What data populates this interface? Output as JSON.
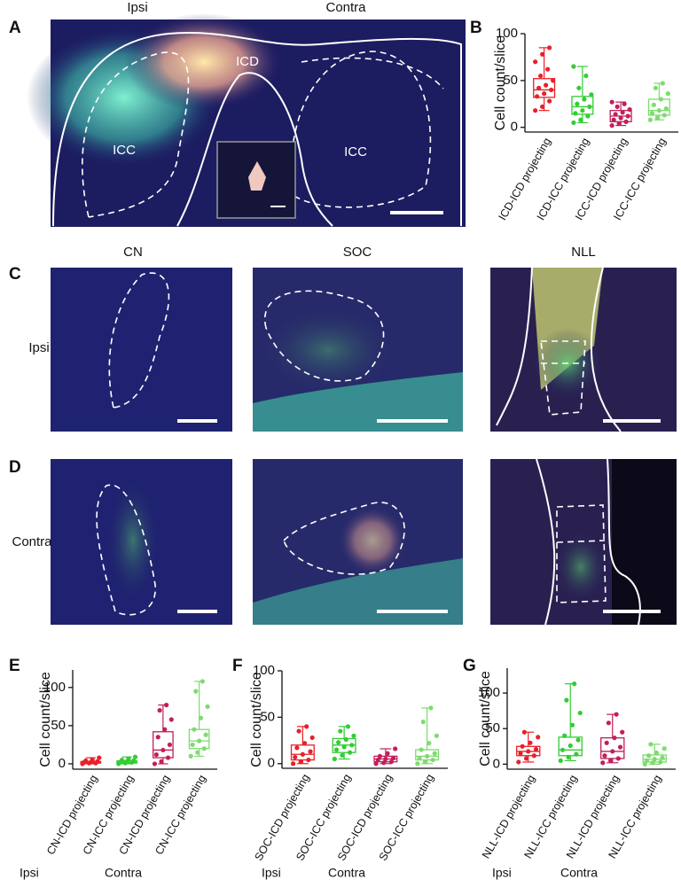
{
  "figure": {
    "panels": [
      "A",
      "B",
      "C",
      "D",
      "E",
      "F",
      "G"
    ],
    "panel_a": {
      "top_labels": [
        "Ipsi",
        "Contra"
      ],
      "region_labels": [
        "ICD",
        "ICC",
        "ICC"
      ]
    },
    "columns": [
      "CN",
      "SOC",
      "NLL"
    ],
    "rows": [
      "Ipsi",
      "Contra"
    ]
  },
  "chart_data": [
    {
      "type": "box",
      "ylabel": "Cell count/slice",
      "ylim": [
        -5,
        100
      ],
      "yticks": [
        0,
        50,
        100
      ],
      "categories": [
        "ICD-ICD projecting",
        "ICD-ICC projecting",
        "ICC-ICD projecting",
        "ICC-ICC projecting"
      ],
      "boxes": [
        {
          "color": "#e8202a",
          "min": 18,
          "q1": 32,
          "median": 40,
          "q3": 52,
          "max": 85,
          "points": [
            18,
            22,
            28,
            33,
            36,
            40,
            42,
            45,
            50,
            55,
            62,
            70,
            78,
            85
          ]
        },
        {
          "color": "#33cc33",
          "min": 5,
          "q1": 14,
          "median": 22,
          "q3": 33,
          "max": 65,
          "points": [
            5,
            8,
            12,
            15,
            18,
            22,
            25,
            30,
            35,
            42,
            55,
            65
          ]
        },
        {
          "color": "#c21f5b",
          "min": 2,
          "q1": 6,
          "median": 12,
          "q3": 18,
          "max": 27,
          "points": [
            2,
            4,
            6,
            8,
            10,
            12,
            14,
            16,
            19,
            22,
            25,
            27
          ]
        },
        {
          "color": "#7ddc6e",
          "min": 8,
          "q1": 13,
          "median": 18,
          "q3": 30,
          "max": 47,
          "points": [
            8,
            10,
            13,
            15,
            18,
            20,
            24,
            30,
            36,
            42,
            47
          ]
        }
      ]
    },
    {
      "type": "box",
      "ylabel": "Cell count/slice",
      "ylim": [
        -7,
        123
      ],
      "yticks": [
        0,
        50,
        100
      ],
      "group_labels": [
        "Ipsi",
        "Contra"
      ],
      "categories": [
        "CN-ICD projecting",
        "CN-ICC projecting",
        "CN-ICD projecting",
        "CN-ICC projecting"
      ],
      "boxes": [
        {
          "color": "#e8202a",
          "min": 0,
          "q1": 1,
          "median": 2,
          "q3": 3,
          "max": 8,
          "points": [
            0,
            1,
            1,
            2,
            2,
            3,
            4,
            5,
            8
          ]
        },
        {
          "color": "#33cc33",
          "min": 0,
          "q1": 1,
          "median": 2,
          "q3": 4,
          "max": 9,
          "points": [
            0,
            1,
            2,
            2,
            3,
            4,
            5,
            7,
            9
          ]
        },
        {
          "color": "#c21f5b",
          "min": 0,
          "q1": 8,
          "median": 18,
          "q3": 42,
          "max": 77,
          "points": [
            0,
            3,
            8,
            12,
            18,
            25,
            35,
            45,
            58,
            70,
            77
          ]
        },
        {
          "color": "#7ddc6e",
          "min": 10,
          "q1": 20,
          "median": 30,
          "q3": 45,
          "max": 108,
          "points": [
            10,
            15,
            20,
            25,
            30,
            38,
            45,
            60,
            75,
            95,
            108
          ]
        }
      ]
    },
    {
      "type": "box",
      "ylabel": "Cell count/slice",
      "ylim": [
        -5,
        100
      ],
      "yticks": [
        0,
        50,
        100
      ],
      "group_labels": [
        "Ipsi",
        "Contra"
      ],
      "categories": [
        "SOC-ICD projecting",
        "SOC-ICC projecting",
        "SOC-ICD projecting",
        "SOC-ICC projecting"
      ],
      "boxes": [
        {
          "color": "#e8202a",
          "min": 0,
          "q1": 4,
          "median": 10,
          "q3": 20,
          "max": 40,
          "points": [
            0,
            2,
            4,
            7,
            10,
            13,
            17,
            22,
            28,
            35,
            40
          ]
        },
        {
          "color": "#33cc33",
          "min": 5,
          "q1": 12,
          "median": 20,
          "q3": 27,
          "max": 40,
          "points": [
            5,
            9,
            12,
            15,
            18,
            20,
            23,
            26,
            30,
            35,
            40
          ]
        },
        {
          "color": "#c21f5b",
          "min": 0,
          "q1": 2,
          "median": 5,
          "q3": 8,
          "max": 16,
          "points": [
            0,
            1,
            2,
            4,
            5,
            6,
            8,
            11,
            16
          ]
        },
        {
          "color": "#7ddc6e",
          "min": 0,
          "q1": 4,
          "median": 8,
          "q3": 15,
          "max": 60,
          "points": [
            0,
            2,
            4,
            6,
            8,
            11,
            15,
            22,
            30,
            45,
            60
          ]
        }
      ]
    },
    {
      "type": "box",
      "ylabel": "Cell count/slice",
      "ylim": [
        -7,
        135
      ],
      "yticks": [
        0,
        50,
        100
      ],
      "group_labels": [
        "Ipsi",
        "Contra"
      ],
      "categories": [
        "NLL-ICD projecting",
        "NLL-ICC projecting",
        "NLL-ICD projecting",
        "NLL-ICC projecting"
      ],
      "boxes": [
        {
          "color": "#e8202a",
          "min": 3,
          "q1": 12,
          "median": 18,
          "q3": 25,
          "max": 45,
          "points": [
            3,
            8,
            12,
            15,
            18,
            21,
            25,
            30,
            38,
            45
          ]
        },
        {
          "color": "#33cc33",
          "min": 5,
          "q1": 12,
          "median": 20,
          "q3": 38,
          "max": 113,
          "points": [
            5,
            10,
            14,
            20,
            26,
            34,
            40,
            55,
            72,
            90,
            113
          ]
        },
        {
          "color": "#c21f5b",
          "min": 2,
          "q1": 8,
          "median": 18,
          "q3": 37,
          "max": 70,
          "points": [
            2,
            5,
            8,
            12,
            18,
            24,
            30,
            37,
            45,
            58,
            70
          ]
        },
        {
          "color": "#7ddc6e",
          "min": 0,
          "q1": 3,
          "median": 7,
          "q3": 13,
          "max": 28,
          "points": [
            0,
            2,
            3,
            5,
            7,
            9,
            12,
            16,
            22,
            28
          ]
        }
      ]
    }
  ]
}
